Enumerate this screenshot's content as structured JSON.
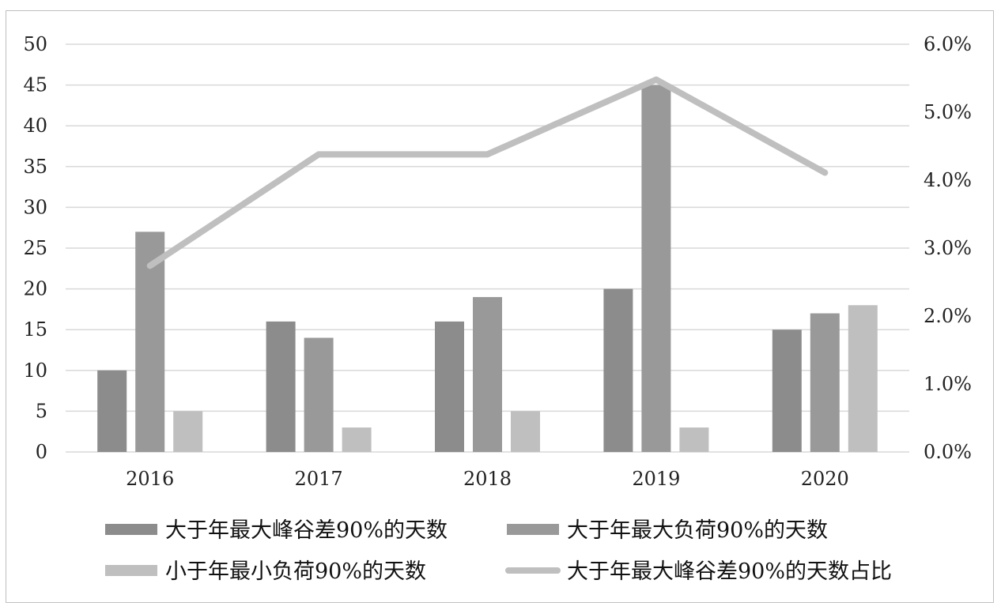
{
  "chart_data": {
    "type": "bar",
    "categories": [
      "2016",
      "2017",
      "2018",
      "2019",
      "2020"
    ],
    "series": [
      {
        "name": "大于年最大峰谷差90%的天数",
        "kind": "bar",
        "axis": "left",
        "color": "#8c8c8c",
        "values": [
          10,
          16,
          16,
          20,
          15
        ]
      },
      {
        "name": "大于年最大负荷90%的天数",
        "kind": "bar",
        "axis": "left",
        "color": "#999999",
        "values": [
          27,
          14,
          19,
          45,
          17
        ]
      },
      {
        "name": "小于年最小负荷90%的天数",
        "kind": "bar",
        "axis": "left",
        "color": "#bfbfbf",
        "values": [
          5,
          3,
          5,
          3,
          18
        ]
      },
      {
        "name": "大于年最大峰谷差90%的天数占比",
        "kind": "line",
        "axis": "right",
        "color": "#bfbfbf",
        "values": [
          2.74,
          4.38,
          4.38,
          5.48,
          4.11
        ]
      }
    ],
    "y_left": {
      "min": 0,
      "max": 50,
      "step": 5,
      "ticks": [
        "0",
        "5",
        "10",
        "15",
        "20",
        "25",
        "30",
        "35",
        "40",
        "45",
        "50"
      ]
    },
    "y_right": {
      "min": 0,
      "max": 6,
      "step": 1,
      "ticks": [
        "0.0%",
        "1.0%",
        "2.0%",
        "3.0%",
        "4.0%",
        "5.0%",
        "6.0%"
      ]
    },
    "grid": true,
    "legend_position": "bottom"
  }
}
